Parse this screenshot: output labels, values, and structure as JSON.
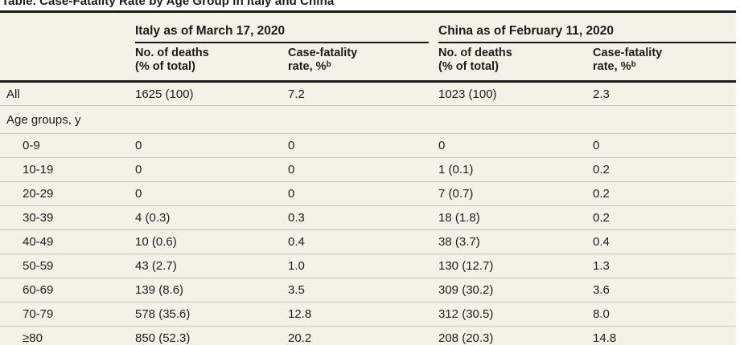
{
  "title": "Table. Case-Fatality Rate by Age Group in Italy and China",
  "table": {
    "groups": [
      {
        "label": "Italy as of March 17, 2020"
      },
      {
        "label": "China as of February 11, 2020"
      }
    ],
    "columns": {
      "deaths_line1": "No. of deaths",
      "deaths_line2": "(% of total)",
      "cfr_line1": "Case-fatality",
      "cfr_line2": "rate, %",
      "cfr_sup": "b"
    },
    "rows": [
      {
        "label": "All",
        "indent": false,
        "section": false,
        "italy_deaths": "1625 (100)",
        "italy_cfr": "7.2",
        "china_deaths": "1023 (100)",
        "china_cfr": "2.3"
      },
      {
        "label": "Age groups, y",
        "indent": false,
        "section": true,
        "italy_deaths": "",
        "italy_cfr": "",
        "china_deaths": "",
        "china_cfr": ""
      },
      {
        "label": "0-9",
        "indent": true,
        "section": false,
        "italy_deaths": "0",
        "italy_cfr": "0",
        "china_deaths": "0",
        "china_cfr": "0"
      },
      {
        "label": "10-19",
        "indent": true,
        "section": false,
        "italy_deaths": "0",
        "italy_cfr": "0",
        "china_deaths": "1 (0.1)",
        "china_cfr": "0.2"
      },
      {
        "label": "20-29",
        "indent": true,
        "section": false,
        "italy_deaths": "0",
        "italy_cfr": "0",
        "china_deaths": "7 (0.7)",
        "china_cfr": "0.2"
      },
      {
        "label": "30-39",
        "indent": true,
        "section": false,
        "italy_deaths": "4 (0.3)",
        "italy_cfr": "0.3",
        "china_deaths": "18 (1.8)",
        "china_cfr": "0.2"
      },
      {
        "label": "40-49",
        "indent": true,
        "section": false,
        "italy_deaths": "10 (0.6)",
        "italy_cfr": "0.4",
        "china_deaths": "38 (3.7)",
        "china_cfr": "0.4"
      },
      {
        "label": "50-59",
        "indent": true,
        "section": false,
        "italy_deaths": "43 (2.7)",
        "italy_cfr": "1.0",
        "china_deaths": "130 (12.7)",
        "china_cfr": "1.3"
      },
      {
        "label": "60-69",
        "indent": true,
        "section": false,
        "italy_deaths": "139 (8.6)",
        "italy_cfr": "3.5",
        "china_deaths": "309 (30.2)",
        "china_cfr": "3.6"
      },
      {
        "label": "70-79",
        "indent": true,
        "section": false,
        "italy_deaths": "578 (35.6)",
        "italy_cfr": "12.8",
        "china_deaths": "312 (30.5)",
        "china_cfr": "8.0"
      },
      {
        "label": "≥80",
        "indent": true,
        "section": false,
        "italy_deaths": "850 (52.3)",
        "italy_cfr": "20.2",
        "china_deaths": "208 (20.3)",
        "china_cfr": "14.8"
      }
    ]
  },
  "colors": {
    "table_background": "#f4f2e7",
    "rule_black": "#1a1a1a",
    "row_separator": "#c8c5b9",
    "text": "#1c1c1c"
  },
  "chart_data": {
    "type": "table",
    "title": "Table. Case-Fatality Rate by Age Group in Italy and China",
    "column_groups": [
      "Italy as of March 17, 2020",
      "China as of February 11, 2020"
    ],
    "columns": [
      "Age group",
      "Italy No. of deaths (% of total)",
      "Italy Case-fatality rate, %",
      "China No. of deaths (% of total)",
      "China Case-fatality rate, %"
    ],
    "rows": [
      [
        "All",
        "1625 (100)",
        "7.2",
        "1023 (100)",
        "2.3"
      ],
      [
        "0-9",
        "0",
        "0",
        "0",
        "0"
      ],
      [
        "10-19",
        "0",
        "0",
        "1 (0.1)",
        "0.2"
      ],
      [
        "20-29",
        "0",
        "0",
        "7 (0.7)",
        "0.2"
      ],
      [
        "30-39",
        "4 (0.3)",
        "0.3",
        "18 (1.8)",
        "0.2"
      ],
      [
        "40-49",
        "10 (0.6)",
        "0.4",
        "38 (3.7)",
        "0.4"
      ],
      [
        "50-59",
        "43 (2.7)",
        "1.0",
        "130 (12.7)",
        "1.3"
      ],
      [
        "60-69",
        "139 (8.6)",
        "3.5",
        "309 (30.2)",
        "3.6"
      ],
      [
        "70-79",
        "578 (35.6)",
        "12.8",
        "312 (30.5)",
        "8.0"
      ],
      [
        "≥80",
        "850 (52.3)",
        "20.2",
        "208 (20.3)",
        "14.8"
      ]
    ]
  }
}
